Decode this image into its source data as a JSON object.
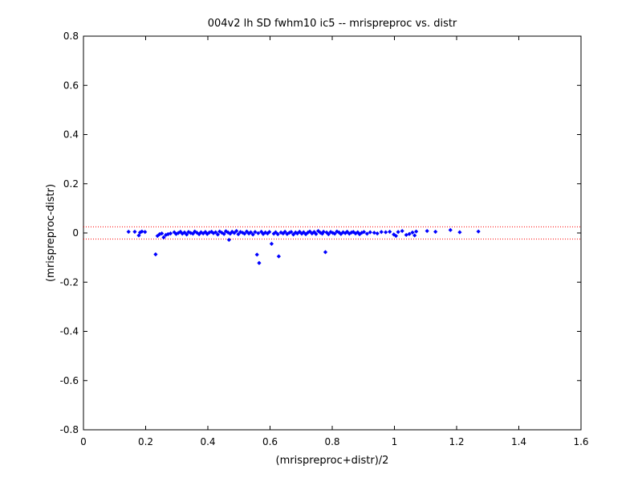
{
  "chart_data": {
    "type": "scatter",
    "title": "004v2 lh SD fwhm10 ic5 -- mrispreproc vs. distr",
    "xlabel": "(mrispreproc+distr)/2",
    "ylabel": "(mrispreproc-distr)",
    "xlim": [
      0,
      1.6
    ],
    "ylim": [
      -0.8,
      0.8
    ],
    "xticks": [
      0,
      0.2,
      0.4,
      0.6,
      0.8,
      1,
      1.2,
      1.4,
      1.6
    ],
    "xtick_labels": [
      "0",
      "0.2",
      "0.4",
      "0.6",
      "0.8",
      "1",
      "1.2",
      "1.4",
      "1.6"
    ],
    "yticks": [
      -0.8,
      -0.6,
      -0.4,
      -0.2,
      0,
      0.2,
      0.4,
      0.6,
      0.8
    ],
    "ytick_labels": [
      "-0.8",
      "-0.6",
      "-0.4",
      "-0.2",
      "0",
      "0.2",
      "0.4",
      "0.6",
      "0.8"
    ],
    "grid": false,
    "reference_lines": [
      0.025,
      -0.025
    ],
    "reference_line_color": "#ff0000",
    "marker_color": "#0000ff",
    "series": [
      {
        "points": [
          [
            0.145,
            0.005
          ],
          [
            0.165,
            0.005
          ],
          [
            0.178,
            -0.01
          ],
          [
            0.182,
            0.002
          ],
          [
            0.188,
            0.006
          ],
          [
            0.198,
            0.004
          ],
          [
            0.232,
            -0.087
          ],
          [
            0.238,
            -0.012
          ],
          [
            0.245,
            -0.005
          ],
          [
            0.252,
            -0.002
          ],
          [
            0.258,
            -0.018
          ],
          [
            0.265,
            -0.008
          ],
          [
            0.272,
            -0.005
          ],
          [
            0.28,
            -0.002
          ],
          [
            0.292,
            0.003
          ],
          [
            0.298,
            -0.004
          ],
          [
            0.305,
            0.0
          ],
          [
            0.312,
            0.005
          ],
          [
            0.318,
            -0.003
          ],
          [
            0.325,
            0.002
          ],
          [
            0.332,
            -0.006
          ],
          [
            0.338,
            0.004
          ],
          [
            0.345,
            0.0
          ],
          [
            0.352,
            -0.003
          ],
          [
            0.358,
            0.006
          ],
          [
            0.365,
            0.001
          ],
          [
            0.372,
            -0.005
          ],
          [
            0.378,
            0.003
          ],
          [
            0.385,
            -0.002
          ],
          [
            0.392,
            0.004
          ],
          [
            0.398,
            -0.004
          ],
          [
            0.405,
            0.002
          ],
          [
            0.412,
            0.005
          ],
          [
            0.418,
            -0.001
          ],
          [
            0.425,
            0.003
          ],
          [
            0.432,
            -0.006
          ],
          [
            0.438,
            0.006
          ],
          [
            0.445,
            0.001
          ],
          [
            0.452,
            -0.004
          ],
          [
            0.458,
            0.007
          ],
          [
            0.465,
            0.002
          ],
          [
            0.468,
            -0.028
          ],
          [
            0.472,
            -0.003
          ],
          [
            0.478,
            0.005
          ],
          [
            0.485,
            0.0
          ],
          [
            0.492,
            0.008
          ],
          [
            0.498,
            -0.005
          ],
          [
            0.505,
            0.004
          ],
          [
            0.512,
            0.001
          ],
          [
            0.518,
            -0.003
          ],
          [
            0.525,
            0.006
          ],
          [
            0.532,
            -0.002
          ],
          [
            0.538,
            0.003
          ],
          [
            0.545,
            -0.006
          ],
          [
            0.552,
            0.004
          ],
          [
            0.558,
            -0.088
          ],
          [
            0.562,
            -0.001
          ],
          [
            0.565,
            -0.122
          ],
          [
            0.572,
            0.005
          ],
          [
            0.578,
            -0.004
          ],
          [
            0.585,
            0.002
          ],
          [
            0.592,
            -0.002
          ],
          [
            0.598,
            0.004
          ],
          [
            0.605,
            -0.044
          ],
          [
            0.612,
            -0.003
          ],
          [
            0.618,
            0.003
          ],
          [
            0.625,
            -0.005
          ],
          [
            0.628,
            -0.095
          ],
          [
            0.635,
            0.002
          ],
          [
            0.642,
            -0.002
          ],
          [
            0.648,
            0.005
          ],
          [
            0.655,
            -0.004
          ],
          [
            0.662,
            0.001
          ],
          [
            0.668,
            0.004
          ],
          [
            0.675,
            -0.006
          ],
          [
            0.682,
            0.002
          ],
          [
            0.688,
            -0.002
          ],
          [
            0.695,
            0.005
          ],
          [
            0.702,
            -0.003
          ],
          [
            0.708,
            0.003
          ],
          [
            0.715,
            -0.005
          ],
          [
            0.722,
            0.002
          ],
          [
            0.728,
            0.006
          ],
          [
            0.735,
            -0.002
          ],
          [
            0.742,
            0.004
          ],
          [
            0.748,
            -0.004
          ],
          [
            0.755,
            0.008
          ],
          [
            0.762,
            0.001
          ],
          [
            0.768,
            -0.003
          ],
          [
            0.772,
            0.005
          ],
          [
            0.778,
            -0.078
          ],
          [
            0.782,
            0.002
          ],
          [
            0.788,
            -0.005
          ],
          [
            0.795,
            0.004
          ],
          [
            0.802,
            0.0
          ],
          [
            0.808,
            -0.003
          ],
          [
            0.815,
            0.006
          ],
          [
            0.822,
            0.002
          ],
          [
            0.828,
            -0.004
          ],
          [
            0.835,
            0.003
          ],
          [
            0.842,
            -0.001
          ],
          [
            0.848,
            0.005
          ],
          [
            0.855,
            -0.003
          ],
          [
            0.862,
            0.002
          ],
          [
            0.868,
            0.004
          ],
          [
            0.875,
            -0.002
          ],
          [
            0.882,
            0.003
          ],
          [
            0.888,
            -0.005
          ],
          [
            0.895,
            0.001
          ],
          [
            0.902,
            0.004
          ],
          [
            0.912,
            -0.003
          ],
          [
            0.922,
            0.003
          ],
          [
            0.935,
            0.001
          ],
          [
            0.945,
            -0.002
          ],
          [
            0.958,
            0.004
          ],
          [
            0.972,
            0.003
          ],
          [
            0.985,
            0.005
          ],
          [
            0.998,
            -0.006
          ],
          [
            1.005,
            -0.012
          ],
          [
            1.012,
            0.004
          ],
          [
            1.025,
            0.008
          ],
          [
            1.038,
            -0.008
          ],
          [
            1.048,
            -0.004
          ],
          [
            1.058,
            0.002
          ],
          [
            1.065,
            -0.01
          ],
          [
            1.07,
            0.006
          ],
          [
            1.105,
            0.008
          ],
          [
            1.132,
            0.005
          ],
          [
            1.18,
            0.012
          ],
          [
            1.21,
            0.003
          ],
          [
            1.27,
            0.006
          ]
        ]
      }
    ]
  }
}
